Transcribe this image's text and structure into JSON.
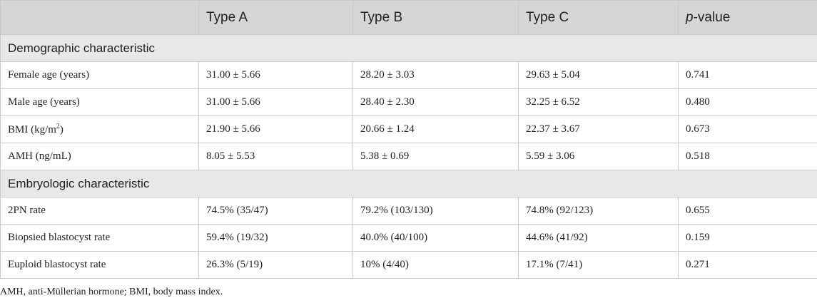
{
  "header": {
    "col0": "",
    "col1": "Type A",
    "col2": "Type B",
    "col3": "Type C",
    "col4_italic": "p",
    "col4_rest": "-value"
  },
  "sections": [
    {
      "title": "Demographic characteristic",
      "rows": [
        {
          "label": "Female age (years)",
          "a": "31.00 ± 5.66",
          "b": "28.20 ± 3.03",
          "c": "29.63 ± 5.04",
          "p": "0.741"
        },
        {
          "label": "Male age (years)",
          "a": "31.00 ± 5.66",
          "b": "28.40 ± 2.30",
          "c": "32.25 ± 6.52",
          "p": "0.480"
        },
        {
          "label": "BMI (kg/m",
          "label_sup": "2",
          "label_tail": ")",
          "a": "21.90 ± 5.66",
          "b": "20.66 ± 1.24",
          "c": "22.37 ± 3.67",
          "p": "0.673"
        },
        {
          "label": "AMH (ng/mL)",
          "a": "8.05 ± 5.53",
          "b": "5.38 ± 0.69",
          "c": "5.59 ± 3.06",
          "p": "0.518"
        }
      ]
    },
    {
      "title": "Embryologic characteristic",
      "rows": [
        {
          "label": "2PN rate",
          "a": "74.5% (35/47)",
          "b": "79.2% (103/130)",
          "c": "74.8% (92/123)",
          "p": "0.655"
        },
        {
          "label": "Biopsied blastocyst rate",
          "a": "59.4% (19/32)",
          "b": "40.0% (40/100)",
          "c": "44.6% (41/92)",
          "p": "0.159"
        },
        {
          "label": "Euploid blastocyst rate",
          "a": "26.3% (5/19)",
          "b": "10% (4/40)",
          "c": "17.1% (7/41)",
          "p": "0.271"
        }
      ]
    }
  ],
  "footnote": "AMH, anti-Müllerian hormone; BMI, body mass index."
}
